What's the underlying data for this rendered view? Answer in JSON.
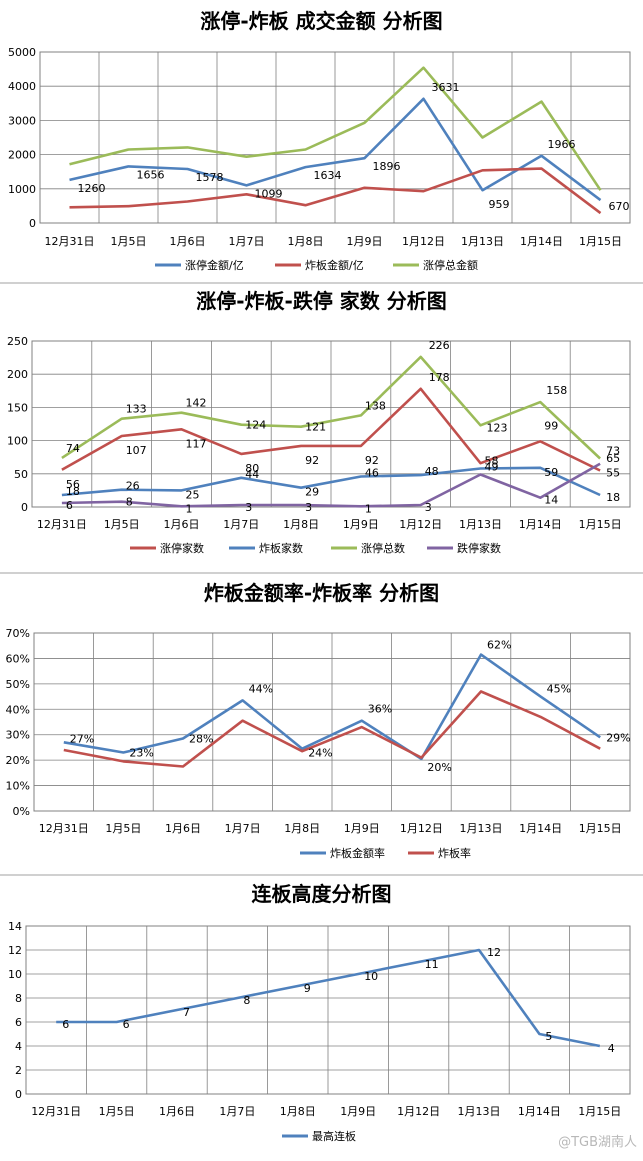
{
  "watermark": "@TGB湖南人",
  "chart_data": [
    {
      "type": "line",
      "title": "涨停-炸板 成交金额 分析图",
      "categories": [
        "12月31日",
        "1月5日",
        "1月6日",
        "1月7日",
        "1月8日",
        "1月9日",
        "1月12日",
        "1月13日",
        "1月14日",
        "1月15日"
      ],
      "ylim": [
        0,
        5000
      ],
      "yticks": [
        0,
        1000,
        2000,
        3000,
        4000,
        5000
      ],
      "series": [
        {
          "name": "涨停金额/亿",
          "color": "#4f81bd",
          "values": [
            1260,
            1656,
            1578,
            1099,
            1634,
            1896,
            3631,
            959,
            1966,
            670
          ],
          "labels": [
            "1260",
            "1656",
            "1578",
            "1099",
            "1634",
            "1896",
            "3631",
            "959",
            "1966",
            "670"
          ]
        },
        {
          "name": "炸板金额/亿",
          "color": "#c0504d",
          "values": [
            460,
            490,
            630,
            840,
            520,
            1030,
            930,
            1540,
            1590,
            290
          ]
        },
        {
          "name": "涨停总金额",
          "color": "#9bbb59",
          "values": [
            1720,
            2150,
            2210,
            1940,
            2150,
            2930,
            4540,
            2500,
            3550,
            960
          ]
        }
      ],
      "legend": "bottom"
    },
    {
      "type": "line",
      "title": "涨停-炸板-跌停 家数 分析图",
      "categories": [
        "12月31日",
        "1月5日",
        "1月6日",
        "1月7日",
        "1月8日",
        "1月9日",
        "1月12日",
        "1月13日",
        "1月14日",
        "1月15日"
      ],
      "ylim": [
        0,
        250
      ],
      "yticks": [
        0,
        50,
        100,
        150,
        200,
        250
      ],
      "series": [
        {
          "name": "涨停家数",
          "color": "#c0504d",
          "values": [
            56,
            107,
            117,
            80,
            92,
            92,
            178,
            66,
            99,
            55
          ],
          "labels": [
            "56",
            "107",
            "117",
            "80",
            "92",
            "92",
            "178",
            "",
            "99",
            "55"
          ]
        },
        {
          "name": "炸板家数",
          "color": "#4f81bd",
          "values": [
            18,
            26,
            25,
            44,
            29,
            46,
            48,
            58,
            59,
            18
          ],
          "labels": [
            "18",
            "26",
            "25",
            "44",
            "29",
            "46",
            "48",
            "58",
            "59",
            "18"
          ]
        },
        {
          "name": "涨停总数",
          "color": "#9bbb59",
          "values": [
            74,
            133,
            142,
            124,
            121,
            138,
            226,
            123,
            158,
            73
          ],
          "labels": [
            "74",
            "133",
            "142",
            "124",
            "121",
            "138",
            "226",
            "123",
            "158",
            "73"
          ]
        },
        {
          "name": "跌停家数",
          "color": "#8064a2",
          "values": [
            6,
            8,
            1,
            3,
            3,
            1,
            3,
            49,
            14,
            65
          ],
          "labels": [
            "6",
            "8",
            "1",
            "3",
            "3",
            "1",
            "3",
            "49",
            "14",
            "65"
          ]
        }
      ],
      "legend": "bottom"
    },
    {
      "type": "line",
      "title": "炸板金额率-炸板率 分析图",
      "categories": [
        "12月31日",
        "1月5日",
        "1月6日",
        "1月7日",
        "1月8日",
        "1月9日",
        "1月12日",
        "1月13日",
        "1月14日",
        "1月15日"
      ],
      "ylim": [
        0,
        70
      ],
      "yticks": [
        "0%",
        "10%",
        "20%",
        "30%",
        "40%",
        "50%",
        "60%",
        "70%"
      ],
      "series": [
        {
          "name": "炸板金额率",
          "color": "#4f81bd",
          "values": [
            27,
            23,
            28.5,
            43.5,
            24.5,
            35.5,
            20.5,
            61.5,
            45,
            29
          ],
          "labels": [
            "27%",
            "23%",
            "28%",
            "44%",
            "24%",
            "36%",
            "20%",
            "62%",
            "45%",
            "29%"
          ]
        },
        {
          "name": "炸板率",
          "color": "#c0504d",
          "values": [
            24,
            19.5,
            17.5,
            35.5,
            23.5,
            33,
            21,
            47,
            37,
            24.5
          ]
        }
      ],
      "legend": "bottom"
    },
    {
      "type": "line",
      "title": "连板高度分析图",
      "categories": [
        "12月31日",
        "1月5日",
        "1月6日",
        "1月7日",
        "1月8日",
        "1月9日",
        "1月12日",
        "1月13日",
        "1月14日",
        "1月15日"
      ],
      "ylim": [
        0,
        14
      ],
      "yticks": [
        0,
        2,
        4,
        6,
        8,
        10,
        12,
        14
      ],
      "series": [
        {
          "name": "最高连板",
          "color": "#4f81bd",
          "values": [
            6,
            6,
            7,
            8,
            9,
            10,
            11,
            12,
            5,
            4
          ],
          "labels": [
            "6",
            "6",
            "7",
            "8",
            "9",
            "10",
            "11",
            "12",
            "5",
            "4"
          ]
        }
      ],
      "legend": "bottom"
    }
  ]
}
